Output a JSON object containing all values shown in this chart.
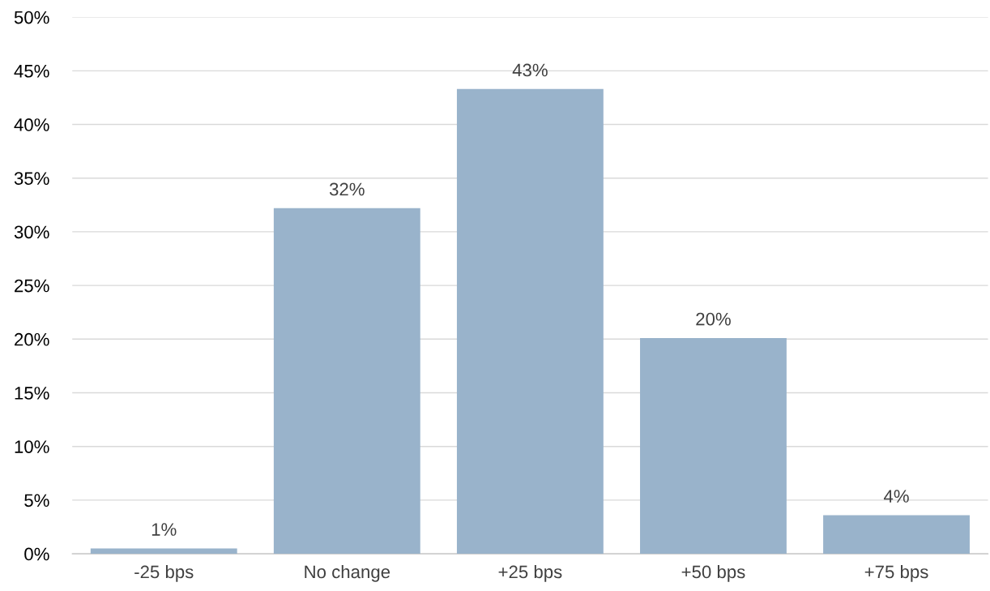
{
  "chart_data": {
    "type": "bar",
    "categories": [
      "-25 bps",
      "No change",
      "+25 bps",
      "+50 bps",
      "+75 bps"
    ],
    "values": [
      0.5,
      32.2,
      43.3,
      20.1,
      3.6
    ],
    "value_labels": [
      "1%",
      "32%",
      "43%",
      "20%",
      "4%"
    ],
    "color": "#99b3cb",
    "ylim": [
      0,
      50
    ],
    "yticks": [
      {
        "value": 0,
        "label": "0%"
      },
      {
        "value": 5,
        "label": "5%"
      },
      {
        "value": 10,
        "label": "10%"
      },
      {
        "value": 15,
        "label": "15%"
      },
      {
        "value": 20,
        "label": "20%"
      },
      {
        "value": 25,
        "label": "25%"
      },
      {
        "value": 30,
        "label": "30%"
      },
      {
        "value": 35,
        "label": "35%"
      },
      {
        "value": 40,
        "label": "40%"
      },
      {
        "value": 45,
        "label": "45%"
      },
      {
        "value": 50,
        "label": "50%"
      }
    ],
    "grid": "y",
    "legend": false
  }
}
